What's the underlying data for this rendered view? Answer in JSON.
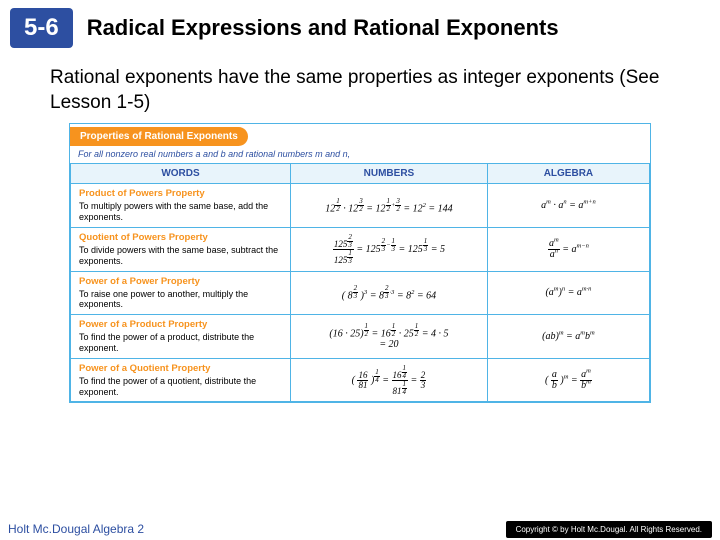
{
  "header": {
    "badge": "5-6",
    "title": "Radical Expressions and Rational Exponents"
  },
  "intro": "Rational exponents have the same properties as integer exponents (See Lesson 1-5)",
  "box": {
    "tab": "Properties of Rational Exponents",
    "sub": "For all nonzero real numbers a and b and rational numbers m and n,",
    "cols": {
      "c1": "WORDS",
      "c2": "NUMBERS",
      "c3": "ALGEBRA"
    },
    "rows": [
      {
        "title": "Product of Powers Property",
        "body": "To multiply powers with the same base, add the exponents.",
        "numbers_html": "12<sup><span class='frac'><span class='n'>1</span><span class='d'>2</span></span></sup> · 12<sup><span class='frac'><span class='n'>3</span><span class='d'>2</span></span></sup> = 12<sup><span class='frac'><span class='n'>1</span><span class='d'>2</span></span>+<span class='frac'><span class='n'>3</span><span class='d'>2</span></span></sup> = 12<sup>2</sup> = 144",
        "algebra_html": "<i>a</i><sup>m</sup> · <i>a</i><sup>n</sup> = <i>a</i><sup>m+n</sup>"
      },
      {
        "title": "Quotient of Powers Property",
        "body": "To divide powers with the same base, subtract the exponents.",
        "numbers_html": "<span class='frac' style='font-size:9px'><span class='n'>125<sup><span class=\"frac\"><span class=\"n\">2</span><span class=\"d\">3</span></span></sup></span><span class='d'>125<sup><span class=\"frac\"><span class=\"n\">1</span><span class=\"d\">3</span></span></sup></span></span> = 125<sup><span class='frac'><span class='n'>2</span><span class='d'>3</span></span>−<span class='frac'><span class='n'>1</span><span class='d'>3</span></span></sup> = 125<sup><span class='frac'><span class='n'>1</span><span class='d'>3</span></span></sup> = 5",
        "algebra_html": "<span class='frac' style='font-size:10px'><span class='n'><i>a</i><sup>m</sup></span><span class='d'><i>a</i><sup>n</sup></span></span> = <i>a</i><sup>m−n</sup>"
      },
      {
        "title": "Power of a Power Property",
        "body": "To raise one power to another, multiply the exponents.",
        "numbers_html": "( 8<sup><span class='frac'><span class='n'>2</span><span class='d'>3</span></span></sup> )<sup>3</sup> = 8<sup><span class='frac'><span class='n'>2</span><span class='d'>3</span></span>·3</sup> = 8<sup>2</sup> = 64",
        "algebra_html": "(<i>a</i><sup>m</sup>)<sup>n</sup> = <i>a</i><sup>m·n</sup>"
      },
      {
        "title": "Power of a Product Property",
        "body": "To find the power of a product, distribute the exponent.",
        "numbers_html": "(16 · 25)<sup><span class='frac'><span class='n'>1</span><span class='d'>2</span></span></sup> = 16<sup><span class='frac'><span class='n'>1</span><span class='d'>2</span></span></sup> · 25<sup><span class='frac'><span class='n'>1</span><span class='d'>2</span></span></sup> = 4 · 5<br>= 20",
        "algebra_html": "(<i>ab</i>)<sup>m</sup> = <i>a</i><sup>m</sup><i>b</i><sup>m</sup>"
      },
      {
        "title": "Power of a Quotient Property",
        "body": "To find the power of a quotient, distribute the exponent.",
        "numbers_html": "( <span class='frac' style='font-size:9px'><span class='n'>16</span><span class='d'>81</span></span> )<sup><span class='frac'><span class='n'>1</span><span class='d'>4</span></span></sup> = <span class='frac' style='font-size:9px'><span class='n'>16<sup><span class=\"frac\"><span class=\"n\">1</span><span class=\"d\">4</span></span></sup></span><span class='d'>81<sup><span class=\"frac\"><span class=\"n\">1</span><span class=\"d\">4</span></span></sup></span></span> = <span class='frac' style='font-size:9px'><span class='n'>2</span><span class='d'>3</span></span>",
        "algebra_html": "( <span class='frac' style='font-size:10px'><span class='n'><i>a</i></span><span class='d'><i>b</i></span></span> )<sup>m</sup> = <span class='frac' style='font-size:10px'><span class='n'><i>a</i><sup>m</sup></span><span class='d'><i>b</i><sup>m</sup></span></span>"
      }
    ]
  },
  "footer": {
    "left": "Holt Mc.Dougal Algebra 2",
    "right": "Copyright © by Holt Mc.Dougal. All Rights Reserved."
  },
  "colors": {
    "badge_bg": "#2d4fa1",
    "accent_orange": "#f7931e",
    "border_blue": "#4fb4e6",
    "head_bg": "#e8f4fb"
  }
}
